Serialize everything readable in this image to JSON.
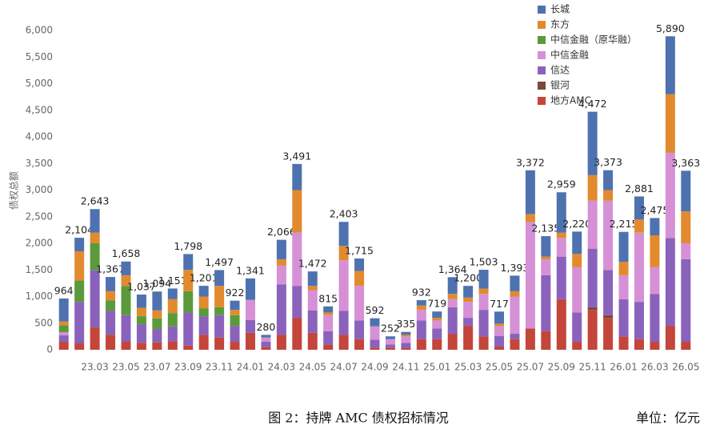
{
  "chart_data": {
    "type": "stacked_bar",
    "y_axis_label": "债权总额",
    "caption": "图 2：持牌 AMC 债权招标情况",
    "unit_note": "单位：亿元",
    "categories": [
      null,
      null,
      "23.03",
      null,
      "23.05",
      null,
      "23.07",
      null,
      "23.09",
      null,
      "23.11",
      null,
      "24.01",
      null,
      "24.03",
      null,
      "24.05",
      null,
      "24.07",
      null,
      "24.09",
      null,
      "24.11",
      null,
      "25.01",
      null,
      "25.03",
      null,
      "25.05",
      null,
      "25.07",
      null,
      "25.09",
      null,
      "25.11",
      null,
      "26.01",
      null,
      "26.03",
      null,
      "26.05"
    ],
    "series": [
      {
        "name": "长城",
        "color": "#4e72b0",
        "values": [
          434,
          254,
          443,
          267,
          258,
          247,
          354,
          201,
          298,
          201,
          297,
          172,
          401,
          50,
          366,
          491,
          272,
          115,
          453,
          235,
          152,
          52,
          55,
          102,
          119,
          314,
          220,
          353,
          227,
          293,
          822,
          385,
          759,
          420,
          1192,
          373,
          565,
          431,
          325,
          1090,
          763
        ]
      },
      {
        "name": "东方",
        "color": "#e28a2e",
        "values": [
          70,
          550,
          200,
          170,
          200,
          160,
          150,
          260,
          400,
          220,
          400,
          100,
          0,
          0,
          120,
          800,
          80,
          50,
          270,
          280,
          0,
          0,
          30,
          80,
          50,
          100,
          80,
          100,
          50,
          100,
          150,
          50,
          100,
          250,
          480,
          200,
          250,
          250,
          600,
          1100,
          600
        ]
      },
      {
        "name": "中信金融（原华融）",
        "color": "#5a9a3a",
        "values": [
          130,
          400,
          500,
          200,
          550,
          150,
          200,
          250,
          400,
          150,
          150,
          200,
          0,
          0,
          0,
          0,
          0,
          0,
          0,
          0,
          0,
          0,
          0,
          0,
          0,
          0,
          0,
          0,
          0,
          0,
          0,
          0,
          0,
          0,
          0,
          0,
          0,
          0,
          0,
          0,
          0
        ]
      },
      {
        "name": "中信金融",
        "color": "#d690d6",
        "values": [
          60,
          0,
          0,
          0,
          0,
          0,
          0,
          0,
          0,
          0,
          0,
          0,
          380,
          80,
          350,
          1000,
          380,
          300,
          950,
          650,
          250,
          100,
          120,
          200,
          150,
          150,
          300,
          300,
          180,
          700,
          2000,
          300,
          350,
          850,
          900,
          1300,
          450,
          1300,
          500,
          1600,
          300
        ]
      },
      {
        "name": "信达",
        "color": "#8a62bc",
        "values": [
          120,
          780,
          1080,
          450,
          500,
          350,
          250,
          280,
          620,
          350,
          420,
          300,
          240,
          100,
          950,
          600,
          420,
          250,
          450,
          350,
          150,
          60,
          100,
          350,
          200,
          500,
          150,
          500,
          200,
          100,
          0,
          1050,
          800,
          550,
          1100,
          850,
          700,
          700,
          900,
          1650,
          1550
        ]
      },
      {
        "name": "银河",
        "color": "#7a4a36",
        "values": [
          0,
          0,
          0,
          0,
          0,
          0,
          0,
          0,
          0,
          0,
          0,
          0,
          0,
          0,
          0,
          0,
          0,
          0,
          0,
          0,
          0,
          0,
          0,
          0,
          0,
          0,
          0,
          0,
          0,
          0,
          0,
          0,
          0,
          0,
          50,
          50,
          0,
          0,
          0,
          0,
          0
        ]
      },
      {
        "name": "地方AMC",
        "color": "#c4453a",
        "values": [
          150,
          120,
          420,
          280,
          150,
          130,
          140,
          160,
          80,
          280,
          230,
          150,
          320,
          50,
          280,
          600,
          320,
          100,
          280,
          200,
          40,
          40,
          30,
          200,
          200,
          300,
          450,
          250,
          60,
          200,
          400,
          350,
          950,
          150,
          750,
          600,
          250,
          200,
          150,
          450,
          150
        ]
      }
    ],
    "totals": [
      964,
      2104,
      2643,
      1367,
      1658,
      1037,
      1094,
      1151,
      1798,
      1201,
      1497,
      922,
      1341,
      280,
      2066,
      3491,
      1472,
      815,
      2403,
      1715,
      592,
      252,
      335,
      932,
      719,
      1364,
      1200,
      1503,
      717,
      1393,
      3372,
      2135,
      2959,
      2220,
      4472,
      3373,
      2215,
      2881,
      2475,
      5890,
      3363
    ],
    "total_labels": [
      "964",
      "2,104",
      "2,643",
      "1,367",
      "1,658",
      "1,037",
      "1,094",
      "1,151",
      "1,798",
      "1,201",
      "1,497",
      "922",
      "1,341",
      "280",
      "2,066",
      "3,491",
      "1,472",
      "815",
      "2,403",
      "1,715",
      "592",
      "252",
      "335",
      "932",
      "719",
      "1,364",
      "1,200",
      "1,503",
      "717",
      "1,393",
      "3,372",
      "2,135",
      "2,959",
      "2,220",
      "4,472",
      "3,373",
      "2,215",
      "2,881",
      "2,475",
      "5,890",
      "3,363"
    ],
    "ylim": [
      0,
      6000
    ],
    "yticks": [
      0,
      500,
      {
        "value": 1000,
        "label": "1,000"
      },
      {
        "value": 1500,
        "label": "1,500"
      },
      {
        "value": 2000,
        "label": "2,000"
      },
      {
        "value": 2500,
        "label": "2,500"
      },
      {
        "value": 3000,
        "label": "3,000"
      },
      {
        "value": 3500,
        "label": "3,500"
      },
      {
        "value": 4000,
        "label": "4,000"
      },
      {
        "value": 4500,
        "label": "4,500"
      },
      {
        "value": 5000,
        "label": "5,000"
      },
      {
        "value": 5500,
        "label": "5,500"
      },
      {
        "value": 6000,
        "label": "6,000"
      }
    ],
    "legend": "upper right"
  }
}
